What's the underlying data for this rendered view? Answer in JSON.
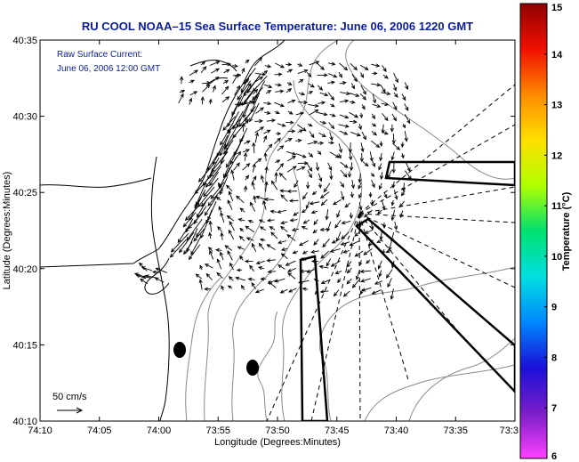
{
  "title": "RU COOL  NOAA–15  Sea Surface Temperature:  June 06, 2006 1220 GMT",
  "annotation": {
    "line1": "Raw Surface Current:",
    "line2": "June 06, 2006 12:00 GMT"
  },
  "scale_label": "50 cm/s",
  "x_axis": {
    "label": "Longitude (Degrees:Minutes)",
    "ticks": [
      "74:10",
      "74:05",
      "74:00",
      "73:55",
      "73:50",
      "73:45",
      "73:40",
      "73:35",
      "73:3"
    ]
  },
  "y_axis": {
    "label": "Latitude (Degrees:Minutes)",
    "ticks": [
      "40:35",
      "40:30",
      "40:25",
      "40:20",
      "40:15",
      "40:10"
    ]
  },
  "colorbar": {
    "label": "Temperature (°C)",
    "min": 6,
    "max": 15,
    "ticks": [
      "15",
      "14",
      "13",
      "12",
      "11",
      "10",
      "9",
      "8",
      "7",
      "6"
    ],
    "colors": [
      "#ff40ff",
      "#7a1ec8",
      "#1a10d8",
      "#0088ff",
      "#00dfe0",
      "#00e070",
      "#b0ff00",
      "#ffe000",
      "#ff8a00",
      "#f01000",
      "#900000"
    ]
  },
  "colors": {
    "title": "#0a1e9c",
    "coast": "#000000",
    "bathymetry": "#8a8a8a",
    "vectors": "#000000"
  }
}
